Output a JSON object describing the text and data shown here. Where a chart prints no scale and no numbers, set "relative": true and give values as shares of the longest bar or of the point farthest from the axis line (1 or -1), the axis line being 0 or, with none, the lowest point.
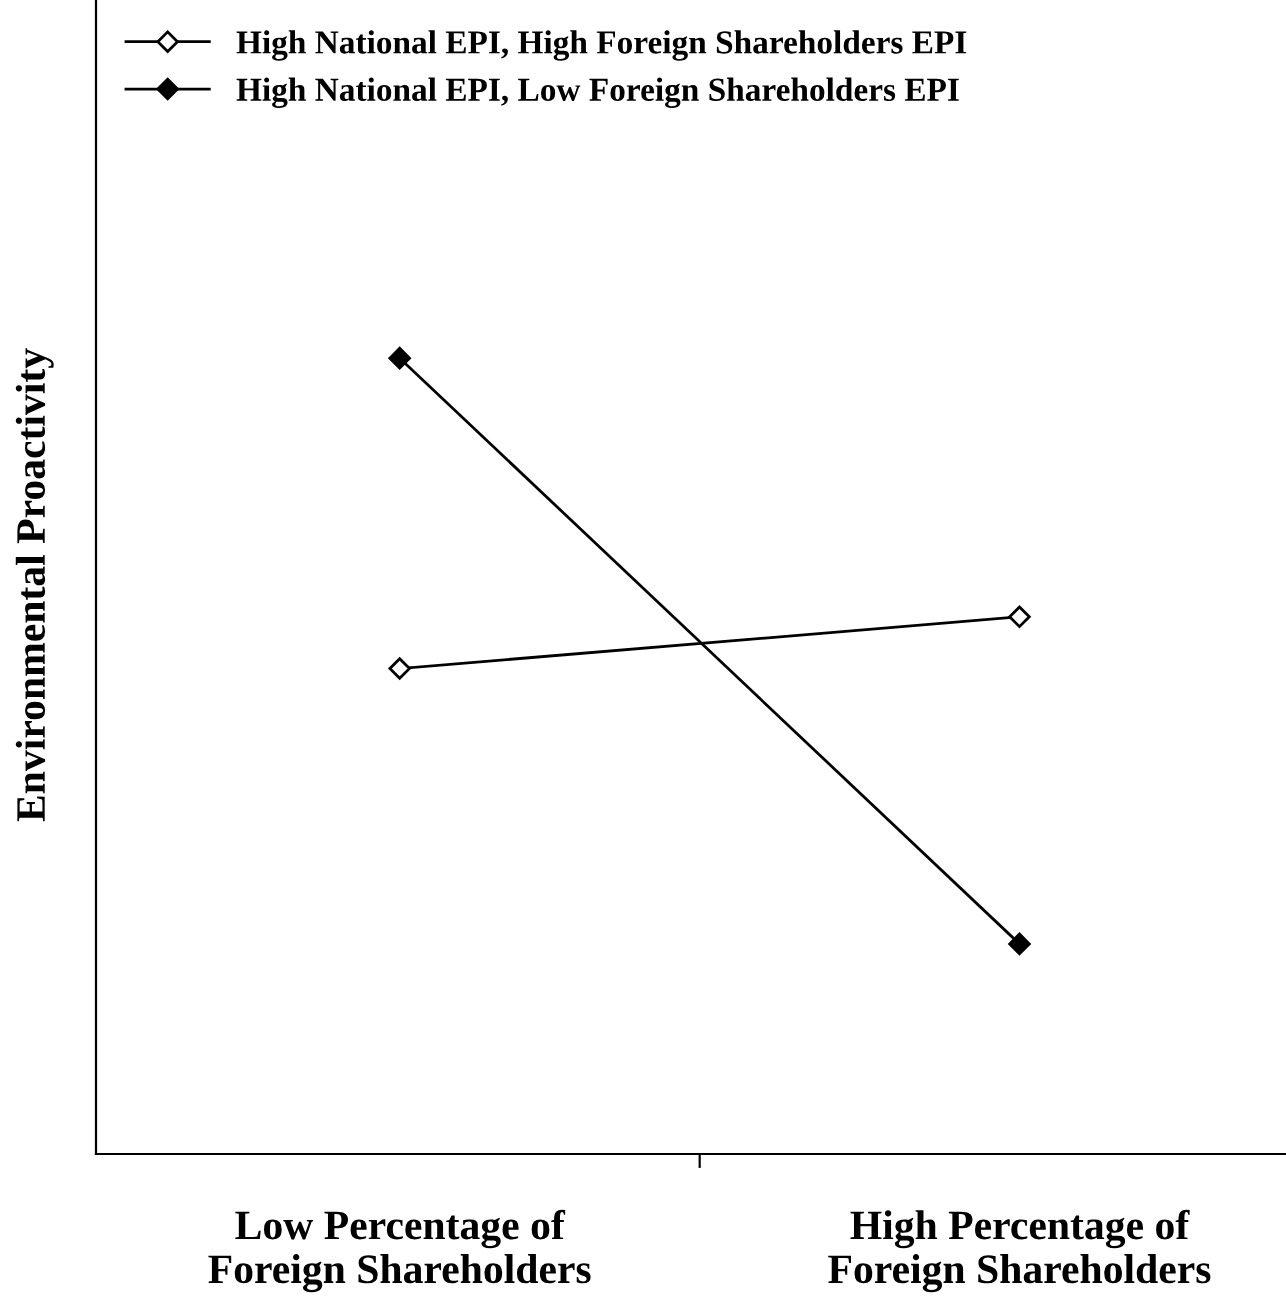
{
  "chart_data": {
    "type": "line",
    "relative": true,
    "ylabel": "Environmental Proactivity",
    "categories": [
      "Low Percentage of\nForeign Shareholders",
      "High Percentage of\nForeign Shareholders"
    ],
    "series": [
      {
        "name": "High National EPI, High Foreign Shareholders EPI",
        "color": "#000000",
        "values": [
          0.61,
          0.675
        ],
        "marker": "diamond"
      },
      {
        "name": "High National EPI, Low Foreign Shareholders EPI",
        "color": "#000000",
        "values": [
          1,
          0.264
        ],
        "marker": "diamond"
      }
    ],
    "legend": "top left",
    "grid": false,
    "line_style": "solid"
  }
}
